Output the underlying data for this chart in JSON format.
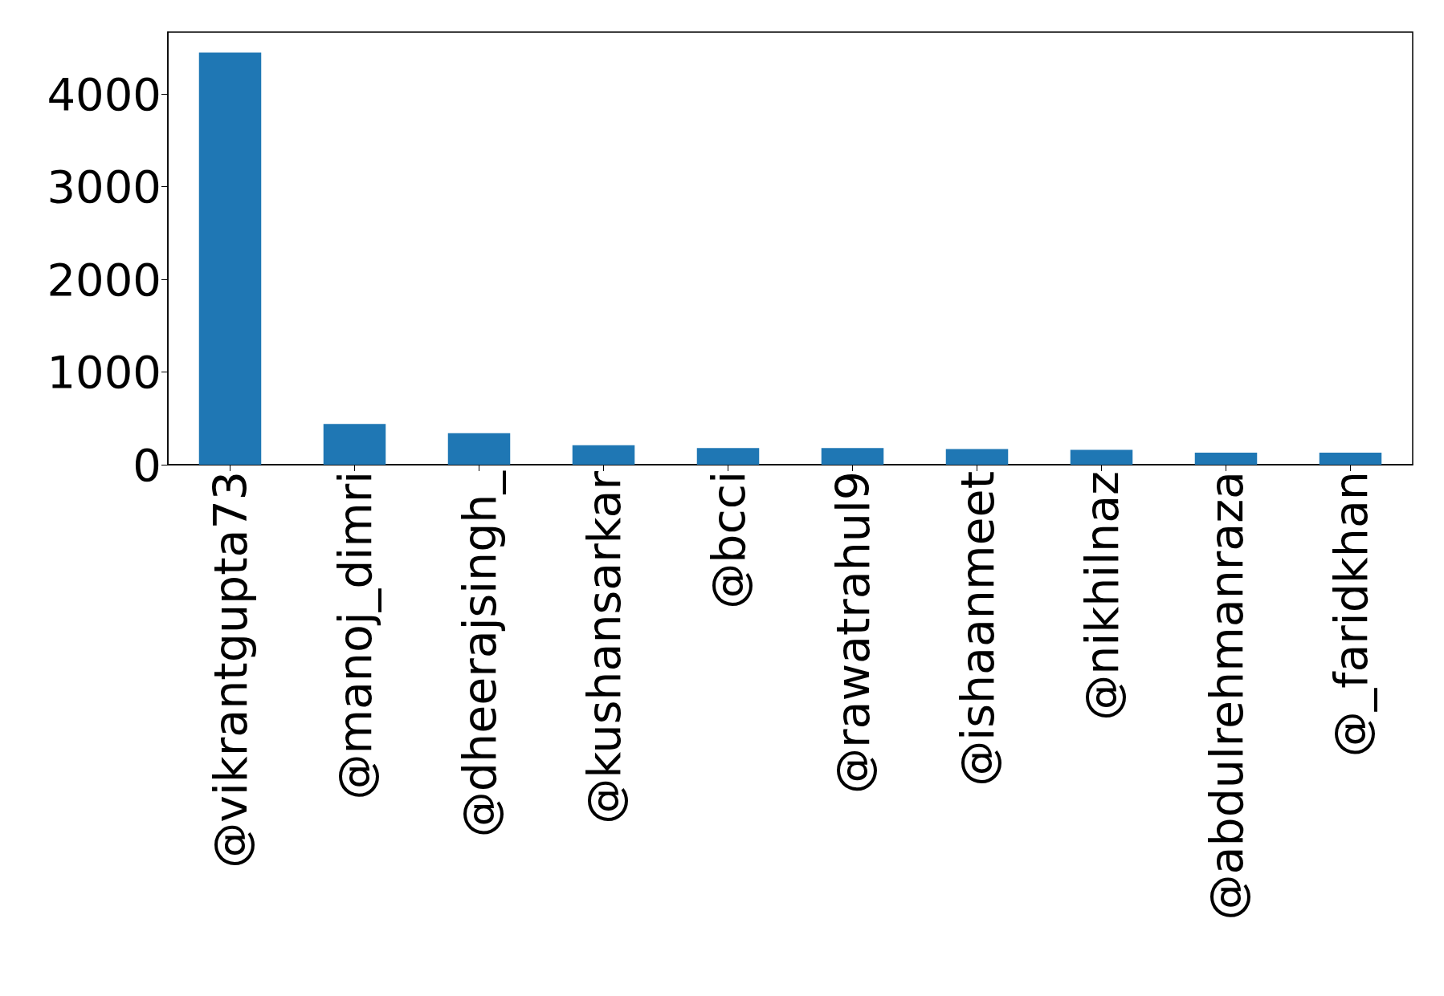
{
  "chart_data": {
    "type": "bar",
    "categories": [
      "@vikrantgupta73",
      "@manoj_dimri",
      "@dheerajsingh_",
      "@kushansarkar",
      "@bcci",
      "@rawatrahul9",
      "@ishaanmeet",
      "@nikhilnaz",
      "@abdulrehmanraza",
      "@_faridkhan"
    ],
    "values": [
      4450,
      440,
      340,
      210,
      180,
      180,
      170,
      160,
      130,
      130
    ],
    "color": "#1f77b4",
    "ylim": [
      0,
      4670
    ],
    "yticks": [
      0,
      1000,
      2000,
      3000,
      4000
    ],
    "grid": false
  }
}
